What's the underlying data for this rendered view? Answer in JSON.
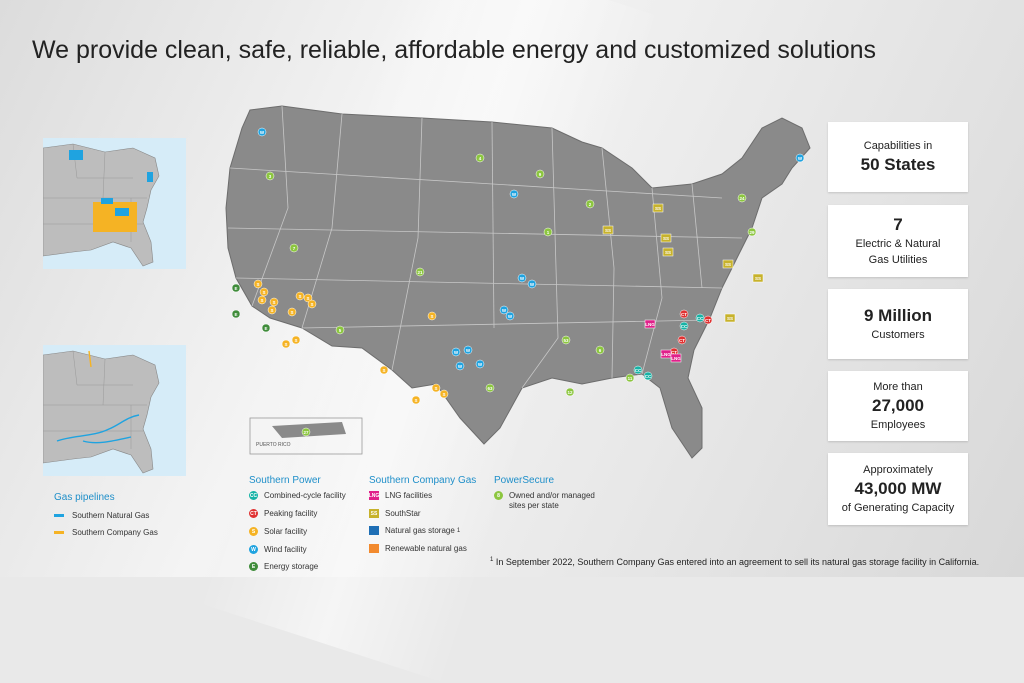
{
  "title": "We provide clean, safe, reliable, affordable energy and customized solutions",
  "stats": [
    {
      "line1": "Capabilities in",
      "line2": "50 States",
      "line3": ""
    },
    {
      "line1": "7",
      "line2": "Electric & Natural",
      "line3": "Gas Utilities"
    },
    {
      "line1": "9 Million",
      "line2": "Customers",
      "line3": ""
    },
    {
      "line1": "More than",
      "line2": "27,000",
      "line3": "Employees"
    },
    {
      "line1": "Approximately",
      "line2": "43,000 MW",
      "line3": "of Generating Capacity"
    }
  ],
  "legend": {
    "pipelines": {
      "title": "Gas pipelines",
      "items": [
        {
          "label": "Southern Natural Gas",
          "color": "#1fa3e0"
        },
        {
          "label": "Southern Company Gas",
          "color": "#f5b324"
        }
      ]
    },
    "southern_power": {
      "title": "Southern Power",
      "items": [
        {
          "label": "Combined-cycle facility",
          "abbr": "CC",
          "color": "#17b3a6"
        },
        {
          "label": "Peaking facility",
          "abbr": "CT",
          "color": "#e03232"
        },
        {
          "label": "Solar facility",
          "abbr": "S",
          "color": "#f5b324"
        },
        {
          "label": "Wind facility",
          "abbr": "W",
          "color": "#1fa3e0"
        },
        {
          "label": "Energy storage",
          "abbr": "E",
          "color": "#3f8c3a"
        }
      ]
    },
    "southern_company_gas": {
      "title": "Southern Company Gas",
      "items": [
        {
          "label": "LNG facilities",
          "abbr": "LNG",
          "color": "#e0218a"
        },
        {
          "label": "SouthStar",
          "abbr": "SS",
          "color": "#c7b22c"
        },
        {
          "label": "Natural gas storage",
          "sup": "1",
          "color": "#1f6fb5"
        },
        {
          "label": "Renewable natural gas",
          "color": "#f28a2e"
        }
      ]
    },
    "powersecure": {
      "title": "PowerSecure",
      "items": [
        {
          "label": "Owned and/or managed",
          "label2": "sites per state",
          "abbr": "8",
          "color": "#8cc63f"
        }
      ]
    }
  },
  "map": {
    "puerto_rico_label": "PUERTO RICO",
    "markers": [
      {
        "t": "W",
        "c": "#1fa3e0"
      },
      {
        "t": "W",
        "c": "#1fa3e0"
      },
      {
        "t": "W",
        "c": "#1fa3e0"
      },
      {
        "t": "W",
        "c": "#1fa3e0"
      },
      {
        "t": "W",
        "c": "#1fa3e0"
      },
      {
        "t": "W",
        "c": "#1fa3e0"
      },
      {
        "t": "W",
        "c": "#1fa3e0"
      },
      {
        "t": "W",
        "c": "#1fa3e0"
      },
      {
        "t": "W",
        "c": "#1fa3e0"
      },
      {
        "t": "W",
        "c": "#1fa3e0"
      },
      {
        "t": "W",
        "c": "#1fa3e0"
      },
      {
        "t": "S",
        "c": "#f5b324"
      },
      {
        "t": "S",
        "c": "#f5b324"
      },
      {
        "t": "S",
        "c": "#f5b324"
      },
      {
        "t": "S",
        "c": "#f5b324"
      },
      {
        "t": "S",
        "c": "#f5b324"
      },
      {
        "t": "S",
        "c": "#f5b324"
      },
      {
        "t": "S",
        "c": "#f5b324"
      },
      {
        "t": "S",
        "c": "#f5b324"
      },
      {
        "t": "S",
        "c": "#f5b324"
      },
      {
        "t": "S",
        "c": "#f5b324"
      },
      {
        "t": "S",
        "c": "#f5b324"
      },
      {
        "t": "S",
        "c": "#f5b324"
      },
      {
        "t": "S",
        "c": "#f5b324"
      },
      {
        "t": "S",
        "c": "#f5b324"
      },
      {
        "t": "S",
        "c": "#f5b324"
      },
      {
        "t": "S",
        "c": "#f5b324"
      },
      {
        "t": "E",
        "c": "#3f8c3a"
      },
      {
        "t": "E",
        "c": "#3f8c3a"
      },
      {
        "t": "E",
        "c": "#3f8c3a"
      },
      {
        "t": "CC",
        "c": "#17b3a6"
      },
      {
        "t": "CC",
        "c": "#17b3a6"
      },
      {
        "t": "CC",
        "c": "#17b3a6"
      },
      {
        "t": "CC",
        "c": "#17b3a6"
      },
      {
        "t": "CT",
        "c": "#e03232"
      },
      {
        "t": "CT",
        "c": "#e03232"
      },
      {
        "t": "CT",
        "c": "#e03232"
      },
      {
        "t": "CT",
        "c": "#e03232"
      },
      {
        "t": "3",
        "c": "#8cc63f"
      },
      {
        "t": "7",
        "c": "#8cc63f"
      },
      {
        "t": "4",
        "c": "#8cc63f"
      },
      {
        "t": "9",
        "c": "#8cc63f"
      },
      {
        "t": "21",
        "c": "#8cc63f"
      },
      {
        "t": "1",
        "c": "#8cc63f"
      },
      {
        "t": "5",
        "c": "#8cc63f"
      },
      {
        "t": "63",
        "c": "#8cc63f"
      },
      {
        "t": "12",
        "c": "#8cc63f"
      },
      {
        "t": "53",
        "c": "#8cc63f"
      },
      {
        "t": "2",
        "c": "#8cc63f"
      },
      {
        "t": "6",
        "c": "#8cc63f"
      },
      {
        "t": "11",
        "c": "#8cc63f"
      },
      {
        "t": "24",
        "c": "#8cc63f"
      },
      {
        "t": "29",
        "c": "#8cc63f"
      },
      {
        "t": "27",
        "c": "#8cc63f"
      },
      {
        "t": "SS",
        "c": "#c7b22c"
      },
      {
        "t": "SS",
        "c": "#c7b22c"
      },
      {
        "t": "SS",
        "c": "#c7b22c"
      },
      {
        "t": "SS",
        "c": "#c7b22c"
      },
      {
        "t": "SS",
        "c": "#c7b22c"
      },
      {
        "t": "SS",
        "c": "#c7b22c"
      },
      {
        "t": "SS",
        "c": "#c7b22c"
      },
      {
        "t": "LNG",
        "c": "#e0218a"
      },
      {
        "t": "LNG",
        "c": "#e0218a"
      },
      {
        "t": "LNG",
        "c": "#e0218a"
      }
    ]
  },
  "footnote": {
    "sup": "1",
    "text": "In September 2022, Southern Company Gas entered into an agreement to sell its natural gas storage facility in California."
  }
}
